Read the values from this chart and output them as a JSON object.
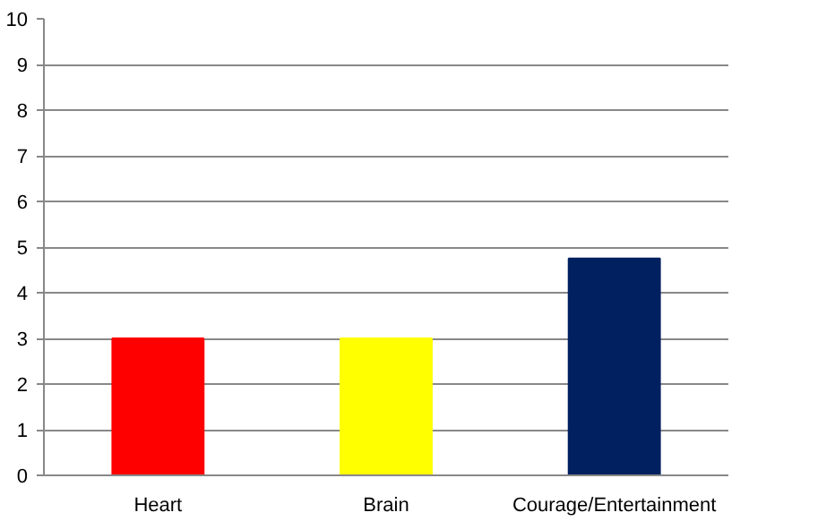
{
  "chart_data": {
    "type": "bar",
    "categories": [
      "Heart",
      "Brain",
      "Courage/Entertainment"
    ],
    "colors": [
      "#ff0000",
      "#ffff00",
      "#002060"
    ],
    "values": [
      3,
      3,
      4.75
    ],
    "ylim": [
      0,
      10
    ],
    "yticks": [
      0,
      1,
      2,
      3,
      4,
      5,
      6,
      7,
      8,
      9,
      10
    ],
    "grid": "y"
  }
}
